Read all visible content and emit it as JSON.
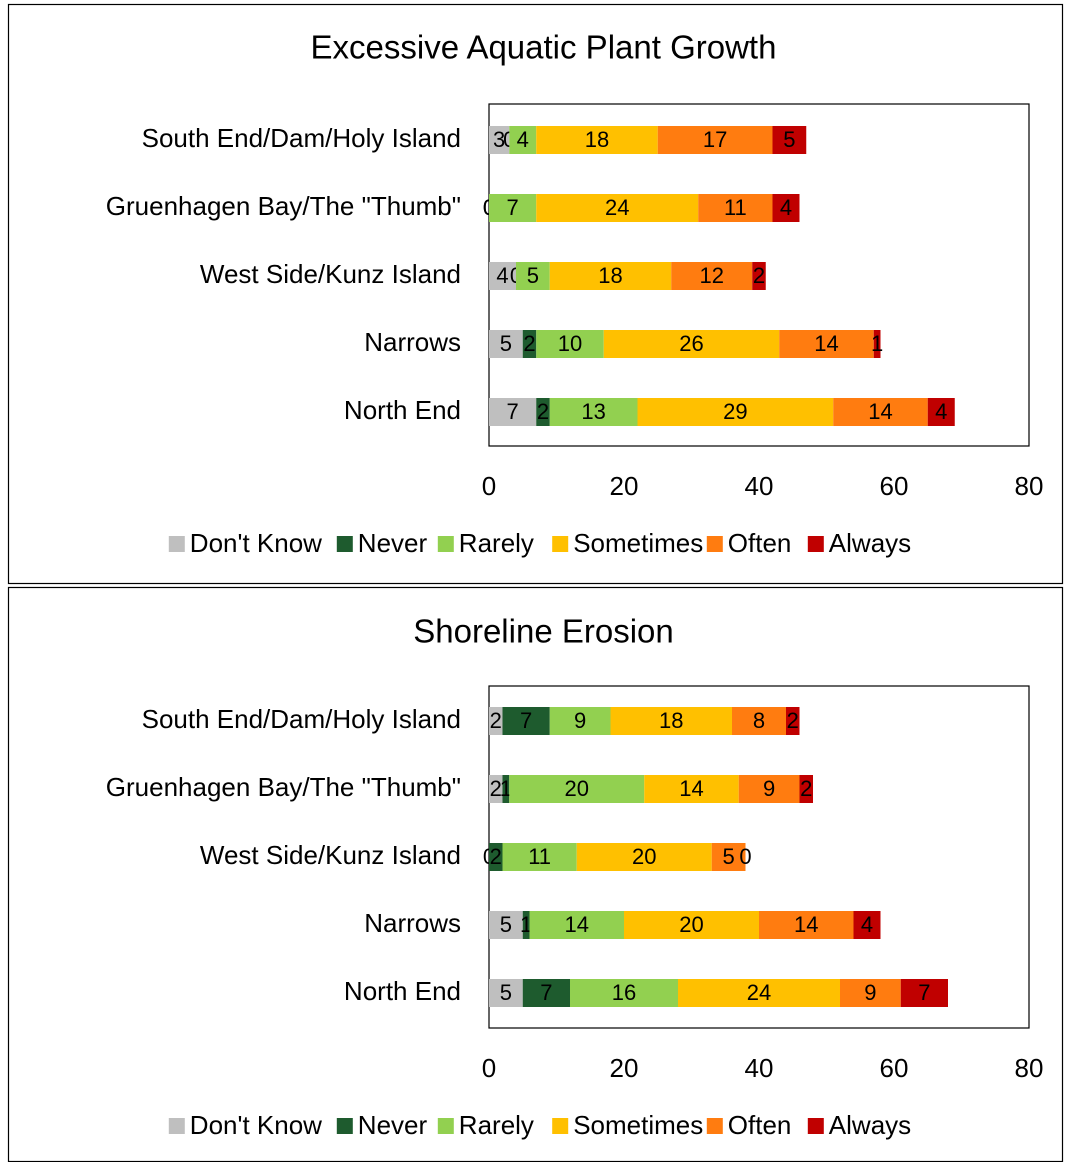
{
  "colors": {
    "Don't Know": "#bfbfbf",
    "Never": "#1e5b2e",
    "Rarely": "#92d050",
    "Sometimes": "#ffc000",
    "Often": "#ff7c10",
    "Always": "#c00000"
  },
  "chart_data": [
    {
      "type": "bar",
      "orientation": "horizontal",
      "stacked": true,
      "title": "Excessive Aquatic Plant Growth",
      "categories": [
        "South End/Dam/Holy Island",
        "Gruenhagen Bay/The \"Thumb\"",
        "West Side/Kunz Island",
        "Narrows",
        "North End"
      ],
      "series": [
        {
          "name": "Don't Know",
          "values": [
            3,
            0,
            4,
            5,
            7
          ]
        },
        {
          "name": "Never",
          "values": [
            0,
            0,
            0,
            2,
            2
          ]
        },
        {
          "name": "Rarely",
          "values": [
            4,
            7,
            5,
            10,
            13
          ]
        },
        {
          "name": "Sometimes",
          "values": [
            18,
            24,
            18,
            26,
            29
          ]
        },
        {
          "name": "Often",
          "values": [
            17,
            11,
            12,
            14,
            14
          ]
        },
        {
          "name": "Always",
          "values": [
            5,
            4,
            2,
            1,
            4
          ]
        }
      ],
      "xlim": [
        0,
        80
      ],
      "xticks": [
        0,
        20,
        40,
        60,
        80
      ],
      "legend": "bottom",
      "grid": false
    },
    {
      "type": "bar",
      "orientation": "horizontal",
      "stacked": true,
      "title": "Shoreline Erosion",
      "categories": [
        "South End/Dam/Holy Island",
        "Gruenhagen Bay/The \"Thumb\"",
        "West Side/Kunz Island",
        "Narrows",
        "North End"
      ],
      "series": [
        {
          "name": "Don't Know",
          "values": [
            2,
            2,
            0,
            5,
            5
          ]
        },
        {
          "name": "Never",
          "values": [
            7,
            1,
            2,
            1,
            7
          ]
        },
        {
          "name": "Rarely",
          "values": [
            9,
            20,
            11,
            14,
            16
          ]
        },
        {
          "name": "Sometimes",
          "values": [
            18,
            14,
            20,
            20,
            24
          ]
        },
        {
          "name": "Often",
          "values": [
            8,
            9,
            5,
            14,
            9
          ]
        },
        {
          "name": "Always",
          "values": [
            2,
            2,
            0,
            4,
            7
          ]
        }
      ],
      "xlim": [
        0,
        80
      ],
      "xticks": [
        0,
        20,
        40,
        60,
        80
      ],
      "legend": "bottom",
      "grid": false
    }
  ]
}
